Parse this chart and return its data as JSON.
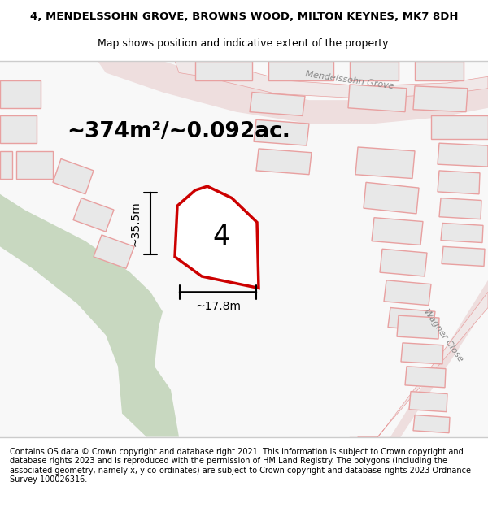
{
  "title_line1": "4, MENDELSSOHN GROVE, BROWNS WOOD, MILTON KEYNES, MK7 8DH",
  "title_line2": "Map shows position and indicative extent of the property.",
  "area_text": "~374m²/~0.092ac.",
  "label_number": "4",
  "dim_width": "~17.8m",
  "dim_height": "~35.5m",
  "street_mendelssohn": "Mendelssohn Grove",
  "street_wagner": "Wagner Close",
  "footer": "Contains OS data © Crown copyright and database right 2021. This information is subject to Crown copyright and database rights 2023 and is reproduced with the permission of HM Land Registry. The polygons (including the associated geometry, namely x, y co-ordinates) are subject to Crown copyright and database rights 2023 Ordnance Survey 100026316.",
  "bg_color": "#f5f5f5",
  "map_bg": "#ffffff",
  "plot_color_fill": "#ffffff",
  "plot_color_stroke": "#cc0000",
  "green_strip_color": "#c8d8c0",
  "building_fill": "#e0e0e0",
  "building_stroke": "#e8a0a0",
  "road_color": "#e8a0a0",
  "road_fill": "#f0f0f0",
  "title_fontsize": 9.5,
  "subtitle_fontsize": 9,
  "area_fontsize": 18,
  "label_fontsize": 22,
  "dim_fontsize": 10,
  "street_fontsize": 8.5,
  "footer_fontsize": 7
}
